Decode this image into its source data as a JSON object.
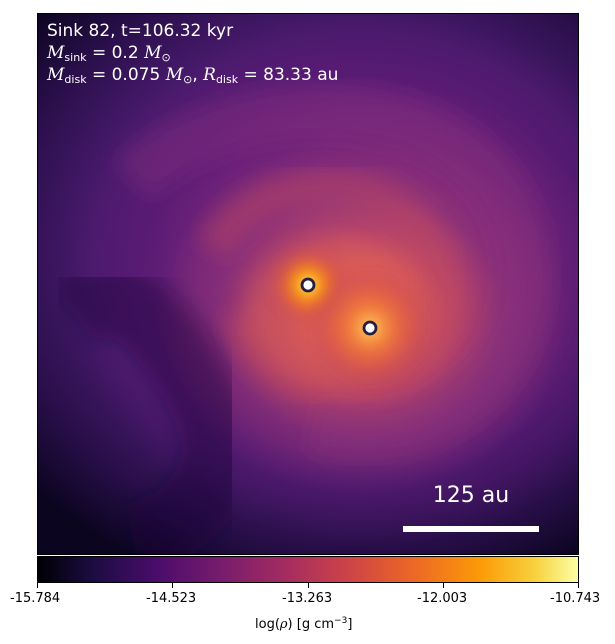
{
  "annotations": {
    "sink_line": "Sink 82, t=106.32 kyr",
    "mass_symbol": "M",
    "sink_subscript": "sink",
    "sink_value": " = 0.2 ",
    "solar_symbol": "M",
    "solar_subscript": "⊙",
    "disk_symbol": "M",
    "disk_subscript": "disk",
    "disk_value": " = 0.075 ",
    "radius_symbol": "R",
    "radius_subscript": "disk",
    "radius_value": " = 83.33 au"
  },
  "scale_bar": {
    "label": "125 au"
  },
  "colorbar": {
    "ticks": [
      "-15.784",
      "-14.523",
      "-13.263",
      "-12.003",
      "-10.743"
    ],
    "label_prefix": "log(",
    "label_rho": "ρ",
    "label_middle": ") [g cm",
    "label_exponent": "−3",
    "label_suffix": "]",
    "colormap": "inferno"
  },
  "markers": [
    {
      "name": "sink-particle-1"
    },
    {
      "name": "sink-particle-2"
    }
  ]
}
